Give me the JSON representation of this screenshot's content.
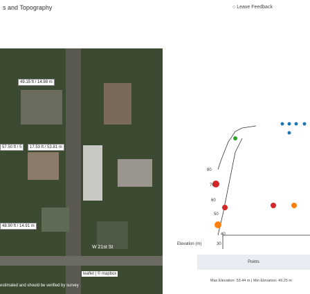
{
  "header": {
    "title": "s and Topography",
    "feedback": "Leave Feedback"
  },
  "map": {
    "labels": [
      "49.15 ft / 14.98 m",
      "57.50 ft / 5",
      "17.53 ft / 53.81 m",
      "48.90 ft / 14.91 m"
    ],
    "street": "W 21st St",
    "attribution": "leaflet | © mapbox",
    "disclaimer": "estimated and should be verified by survey"
  },
  "chart": {
    "axis_label": "Elevation (m)",
    "ticks": [
      "80",
      "70",
      "60",
      "50",
      "40",
      "30"
    ],
    "legend_title": "Points",
    "summary": "Max Elevation: 53.44 m | Min Elevation: 49.25 m"
  }
}
